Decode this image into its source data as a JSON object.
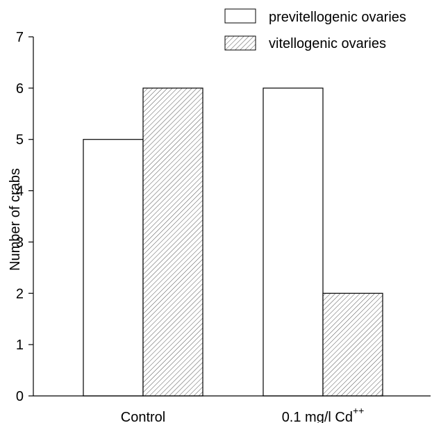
{
  "chart_data": {
    "type": "bar",
    "title": "",
    "xlabel": "",
    "ylabel": "Number of crabs",
    "ylim": [
      0,
      7
    ],
    "yticks": [
      "0",
      "1",
      "2",
      "3",
      "4",
      "5",
      "6",
      "7"
    ],
    "categories": [
      {
        "text": "Control",
        "sup": ""
      },
      {
        "text": "0.1 mg/l Cd",
        "sup": "++"
      }
    ],
    "series": [
      {
        "name": "previtellogenic ovaries",
        "pattern": "plain",
        "values": [
          5,
          6
        ]
      },
      {
        "name": "vitellogenic ovaries",
        "pattern": "hatched",
        "values": [
          6,
          2
        ]
      }
    ],
    "legend_position": "top-right",
    "grid": false,
    "colors": {
      "axis": "#000000",
      "bar_fill": "#ffffff",
      "hatch": "#555555"
    }
  }
}
